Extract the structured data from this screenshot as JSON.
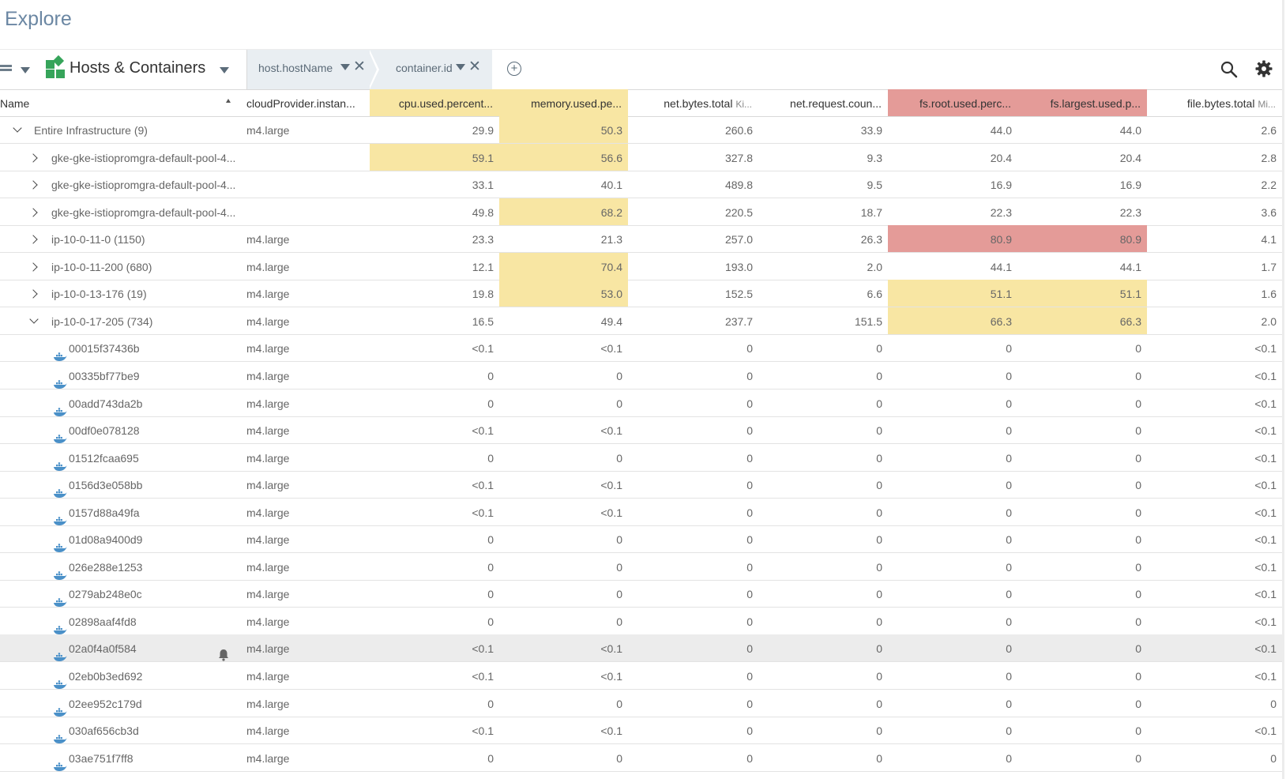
{
  "page": {
    "title": "Explore"
  },
  "toolbar": {
    "workspace_label": "Hosts & Containers",
    "groupby": [
      "host.hostName",
      "container.id"
    ],
    "icons": {
      "view": "list-view-icon",
      "workspace": "grid-icon",
      "add": "add-circle-icon",
      "search": "search-icon",
      "settings": "gear-icon"
    }
  },
  "colors": {
    "highlight_yellow": "#f8e6a3",
    "highlight_red": "#e49b98",
    "title": "#6b87a3",
    "docker": "#4a90c8"
  },
  "table": {
    "columns": [
      {
        "label": "Name",
        "unit": ""
      },
      {
        "label": "cloudProvider.instan...",
        "unit": ""
      },
      {
        "label": "cpu.used.percent...",
        "unit": ""
      },
      {
        "label": "memory.used.pe...",
        "unit": ""
      },
      {
        "label": "net.bytes.total ",
        "unit": "Ki..."
      },
      {
        "label": "net.request.coun...",
        "unit": ""
      },
      {
        "label": "fs.root.used.perc...",
        "unit": ""
      },
      {
        "label": "fs.largest.used.p...",
        "unit": ""
      },
      {
        "label": "file.bytes.total ",
        "unit": "Mi..."
      }
    ],
    "column_highlights": [
      "none",
      "none",
      "yellow",
      "yellow",
      "none",
      "none",
      "red",
      "red",
      "none"
    ],
    "rows": [
      {
        "name": "Entire Infrastructure (9)",
        "level": 0,
        "expand": "down",
        "provider": "m4.large",
        "values": [
          "29.9",
          "50.3",
          "260.6",
          "33.9",
          "44.0",
          "44.0",
          "2.6"
        ],
        "highlights": [
          "none",
          "yellow",
          "none",
          "none",
          "none",
          "none",
          "none"
        ]
      },
      {
        "name": "gke-gke-istiopromgra-default-pool-4...",
        "level": 1,
        "expand": "right",
        "provider": "",
        "values": [
          "59.1",
          "56.6",
          "327.8",
          "9.3",
          "20.4",
          "20.4",
          "2.8"
        ],
        "highlights": [
          "yellow",
          "yellow",
          "none",
          "none",
          "none",
          "none",
          "none"
        ]
      },
      {
        "name": "gke-gke-istiopromgra-default-pool-4...",
        "level": 1,
        "expand": "right",
        "provider": "",
        "values": [
          "33.1",
          "40.1",
          "489.8",
          "9.5",
          "16.9",
          "16.9",
          "2.2"
        ],
        "highlights": [
          "none",
          "none",
          "none",
          "none",
          "none",
          "none",
          "none"
        ]
      },
      {
        "name": "gke-gke-istiopromgra-default-pool-4...",
        "level": 1,
        "expand": "right",
        "provider": "",
        "values": [
          "49.8",
          "68.2",
          "220.5",
          "18.7",
          "22.3",
          "22.3",
          "3.6"
        ],
        "highlights": [
          "none",
          "yellow",
          "none",
          "none",
          "none",
          "none",
          "none"
        ]
      },
      {
        "name": "ip-10-0-11-0 (1150)",
        "level": 1,
        "expand": "right",
        "provider": "m4.large",
        "values": [
          "23.3",
          "21.3",
          "257.0",
          "26.3",
          "80.9",
          "80.9",
          "4.1"
        ],
        "highlights": [
          "none",
          "none",
          "none",
          "none",
          "red",
          "red",
          "none"
        ]
      },
      {
        "name": "ip-10-0-11-200 (680)",
        "level": 1,
        "expand": "right",
        "provider": "m4.large",
        "values": [
          "12.1",
          "70.4",
          "193.0",
          "2.0",
          "44.1",
          "44.1",
          "1.7"
        ],
        "highlights": [
          "none",
          "yellow",
          "none",
          "none",
          "none",
          "none",
          "none"
        ]
      },
      {
        "name": "ip-10-0-13-176 (19)",
        "level": 1,
        "expand": "right",
        "provider": "m4.large",
        "values": [
          "19.8",
          "53.0",
          "152.5",
          "6.6",
          "51.1",
          "51.1",
          "1.6"
        ],
        "highlights": [
          "none",
          "yellow",
          "none",
          "none",
          "yellow",
          "yellow",
          "none"
        ]
      },
      {
        "name": "ip-10-0-17-205 (734)",
        "level": 1,
        "expand": "down",
        "provider": "m4.large",
        "values": [
          "16.5",
          "49.4",
          "237.7",
          "151.5",
          "66.3",
          "66.3",
          "2.0"
        ],
        "highlights": [
          "none",
          "none",
          "none",
          "none",
          "yellow",
          "yellow",
          "none"
        ]
      },
      {
        "name": "00015f37436b",
        "level": 2,
        "expand": "none",
        "provider": "m4.large",
        "values": [
          "<0.1",
          "<0.1",
          "0",
          "0",
          "0",
          "0",
          "<0.1"
        ],
        "highlights": []
      },
      {
        "name": "00335bf77be9",
        "level": 2,
        "expand": "none",
        "provider": "m4.large",
        "values": [
          "0",
          "0",
          "0",
          "0",
          "0",
          "0",
          "<0.1"
        ],
        "highlights": []
      },
      {
        "name": "00add743da2b",
        "level": 2,
        "expand": "none",
        "provider": "m4.large",
        "values": [
          "0",
          "0",
          "0",
          "0",
          "0",
          "0",
          "<0.1"
        ],
        "highlights": []
      },
      {
        "name": "00df0e078128",
        "level": 2,
        "expand": "none",
        "provider": "m4.large",
        "values": [
          "<0.1",
          "<0.1",
          "0",
          "0",
          "0",
          "0",
          "<0.1"
        ],
        "highlights": []
      },
      {
        "name": "01512fcaa695",
        "level": 2,
        "expand": "none",
        "provider": "m4.large",
        "values": [
          "0",
          "0",
          "0",
          "0",
          "0",
          "0",
          "<0.1"
        ],
        "highlights": []
      },
      {
        "name": "0156d3e058bb",
        "level": 2,
        "expand": "none",
        "provider": "m4.large",
        "values": [
          "<0.1",
          "<0.1",
          "0",
          "0",
          "0",
          "0",
          "<0.1"
        ],
        "highlights": []
      },
      {
        "name": "0157d88a49fa",
        "level": 2,
        "expand": "none",
        "provider": "m4.large",
        "values": [
          "<0.1",
          "<0.1",
          "0",
          "0",
          "0",
          "0",
          "<0.1"
        ],
        "highlights": []
      },
      {
        "name": "01d08a9400d9",
        "level": 2,
        "expand": "none",
        "provider": "m4.large",
        "values": [
          "0",
          "0",
          "0",
          "0",
          "0",
          "0",
          "<0.1"
        ],
        "highlights": []
      },
      {
        "name": "026e288e1253",
        "level": 2,
        "expand": "none",
        "provider": "m4.large",
        "values": [
          "0",
          "0",
          "0",
          "0",
          "0",
          "0",
          "<0.1"
        ],
        "highlights": []
      },
      {
        "name": "0279ab248e0c",
        "level": 2,
        "expand": "none",
        "provider": "m4.large",
        "values": [
          "0",
          "0",
          "0",
          "0",
          "0",
          "0",
          "<0.1"
        ],
        "highlights": []
      },
      {
        "name": "02898aaf4fd8",
        "level": 2,
        "expand": "none",
        "provider": "m4.large",
        "values": [
          "0",
          "0",
          "0",
          "0",
          "0",
          "0",
          "<0.1"
        ],
        "highlights": []
      },
      {
        "name": "02a0f4a0f584",
        "level": 2,
        "expand": "none",
        "provider": "m4.large",
        "values": [
          "<0.1",
          "<0.1",
          "0",
          "0",
          "0",
          "0",
          "<0.1"
        ],
        "highlights": [],
        "selected": true,
        "alert_icon": "bell-icon"
      },
      {
        "name": "02eb0b3ed692",
        "level": 2,
        "expand": "none",
        "provider": "m4.large",
        "values": [
          "<0.1",
          "<0.1",
          "0",
          "0",
          "0",
          "0",
          "<0.1"
        ],
        "highlights": []
      },
      {
        "name": "02ee952c179d",
        "level": 2,
        "expand": "none",
        "provider": "m4.large",
        "values": [
          "0",
          "0",
          "0",
          "0",
          "0",
          "0",
          "0"
        ],
        "highlights": []
      },
      {
        "name": "030af656cb3d",
        "level": 2,
        "expand": "none",
        "provider": "m4.large",
        "values": [
          "<0.1",
          "<0.1",
          "0",
          "0",
          "0",
          "0",
          "<0.1"
        ],
        "highlights": []
      },
      {
        "name": "03ae751f7ff8",
        "level": 2,
        "expand": "none",
        "provider": "m4.large",
        "values": [
          "0",
          "0",
          "0",
          "0",
          "0",
          "0",
          "0"
        ],
        "highlights": []
      }
    ]
  }
}
